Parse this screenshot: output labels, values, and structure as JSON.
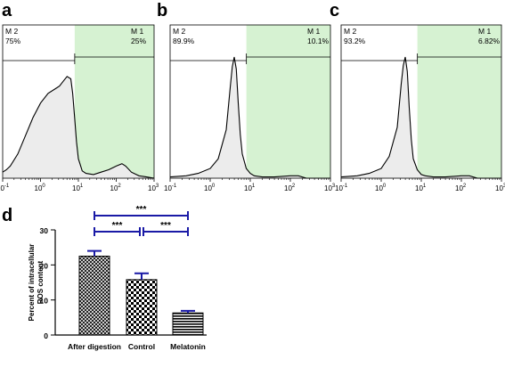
{
  "chart_data": [
    {
      "type": "area",
      "panel": "a",
      "gates": [
        {
          "name": "M 2",
          "percent": "75%"
        },
        {
          "name": "M 1",
          "percent": "25%"
        }
      ],
      "x_tick_labels": [
        {
          "base": "10",
          "exp": "-1"
        },
        {
          "base": "10",
          "exp": "0"
        },
        {
          "base": "10",
          "exp": "1"
        },
        {
          "base": "10",
          "exp": "2"
        },
        {
          "base": "10",
          "exp": "3"
        }
      ],
      "xscale": "log",
      "xlim": [
        0.1,
        1000
      ],
      "gate_boundary": 8,
      "histogram": {
        "logx": [
          -1.0,
          -0.9,
          -0.8,
          -0.6,
          -0.4,
          -0.2,
          0.0,
          0.2,
          0.4,
          0.5,
          0.6,
          0.7,
          0.8,
          0.85,
          0.9,
          0.95,
          1.0,
          1.1,
          1.2,
          1.4,
          1.6,
          1.8,
          2.0,
          2.15,
          2.25,
          2.4,
          2.6,
          2.8,
          3.0
        ],
        "y": [
          0.05,
          0.07,
          0.1,
          0.2,
          0.35,
          0.5,
          0.62,
          0.7,
          0.74,
          0.76,
          0.8,
          0.84,
          0.82,
          0.7,
          0.5,
          0.3,
          0.16,
          0.06,
          0.04,
          0.03,
          0.05,
          0.07,
          0.1,
          0.12,
          0.1,
          0.05,
          0.02,
          0.01,
          0.0
        ]
      }
    },
    {
      "type": "area",
      "panel": "b",
      "gates": [
        {
          "name": "M 2",
          "percent": "89.9%"
        },
        {
          "name": "M 1",
          "percent": "10.1%"
        }
      ],
      "x_tick_labels": [
        {
          "base": "10",
          "exp": "-1"
        },
        {
          "base": "10",
          "exp": "0"
        },
        {
          "base": "10",
          "exp": "1"
        },
        {
          "base": "10",
          "exp": "2"
        },
        {
          "base": "10",
          "exp": "3"
        }
      ],
      "xscale": "log",
      "xlim": [
        0.1,
        1000
      ],
      "gate_boundary": 8,
      "histogram": {
        "logx": [
          -1.0,
          -0.6,
          -0.3,
          0.0,
          0.2,
          0.4,
          0.5,
          0.55,
          0.6,
          0.65,
          0.7,
          0.75,
          0.8,
          0.9,
          1.0,
          1.1,
          1.3,
          1.6,
          2.0,
          2.2,
          2.4,
          3.0
        ],
        "y": [
          0.01,
          0.02,
          0.04,
          0.08,
          0.16,
          0.4,
          0.75,
          0.92,
          1.0,
          0.9,
          0.62,
          0.36,
          0.2,
          0.08,
          0.04,
          0.02,
          0.01,
          0.01,
          0.02,
          0.02,
          0.0,
          0.0
        ]
      }
    },
    {
      "type": "area",
      "panel": "c",
      "gates": [
        {
          "name": "M 2",
          "percent": "93.2%"
        },
        {
          "name": "M 1",
          "percent": "6.82%"
        }
      ],
      "x_tick_labels": [
        {
          "base": "10",
          "exp": "-1"
        },
        {
          "base": "10",
          "exp": "0"
        },
        {
          "base": "10",
          "exp": "1"
        },
        {
          "base": "10",
          "exp": "2"
        },
        {
          "base": "10",
          "exp": "3"
        }
      ],
      "xscale": "log",
      "xlim": [
        0.1,
        1000
      ],
      "gate_boundary": 8,
      "histogram": {
        "logx": [
          -1.0,
          -0.6,
          -0.3,
          0.0,
          0.2,
          0.4,
          0.5,
          0.55,
          0.6,
          0.65,
          0.7,
          0.75,
          0.8,
          0.9,
          1.0,
          1.1,
          1.3,
          1.6,
          2.0,
          2.2,
          2.4,
          3.0
        ],
        "y": [
          0.01,
          0.02,
          0.04,
          0.08,
          0.18,
          0.42,
          0.78,
          0.93,
          1.0,
          0.88,
          0.58,
          0.32,
          0.16,
          0.07,
          0.03,
          0.02,
          0.01,
          0.01,
          0.02,
          0.02,
          0.0,
          0.0
        ]
      }
    },
    {
      "type": "bar",
      "panel": "d",
      "categories": [
        "After digestion",
        "Control",
        "Melatonin"
      ],
      "values": [
        22.5,
        15.8,
        6.3
      ],
      "errors": [
        1.5,
        1.8,
        0.6
      ],
      "ylabel": "Percent of intracellular ROS content",
      "ylim": [
        0,
        30
      ],
      "y_ticks": [
        "0",
        "10",
        "20",
        "30"
      ],
      "error_color": "#1a1aa6",
      "patterns": [
        "crosshatch",
        "checker",
        "horizontal"
      ],
      "significance": [
        {
          "label": "***",
          "from": "After digestion",
          "to": "Melatonin",
          "level": "upper"
        },
        {
          "label": "***",
          "from": "After digestion",
          "to": "Control",
          "level": "lower"
        },
        {
          "label": "***",
          "from": "Control",
          "to": "Melatonin",
          "level": "lower"
        }
      ]
    }
  ],
  "colors": {
    "gate_m1_fill": "#d6f2d2",
    "histogram_fill": "#ececec",
    "line": "#000000"
  }
}
